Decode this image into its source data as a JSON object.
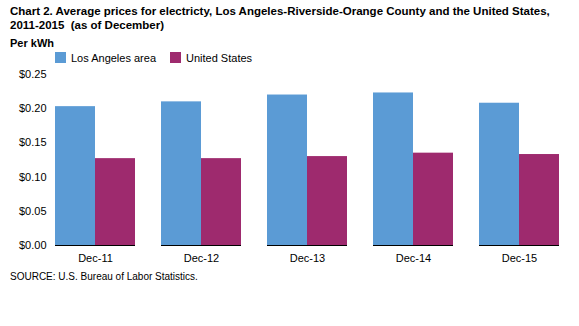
{
  "chart_data": {
    "type": "bar",
    "title": "Chart 2. Average prices for electricty, Los Angeles-Riverside-Orange County and the United States, 2011-2015  (as of December)",
    "ylabel": "Per kWh",
    "source": "SOURCE: U.S. Bureau of Labor Statistics.",
    "categories": [
      "Dec-11",
      "Dec-12",
      "Dec-13",
      "Dec-14",
      "Dec-15"
    ],
    "series": [
      {
        "name": "Los Angeles area",
        "color": "#5B9BD5",
        "values": [
          0.203,
          0.21,
          0.22,
          0.223,
          0.208
        ]
      },
      {
        "name": "United States",
        "color": "#9E2A6E",
        "values": [
          0.127,
          0.127,
          0.13,
          0.135,
          0.133
        ]
      }
    ],
    "ylim": [
      0,
      0.25
    ],
    "yticks": [
      {
        "value": 0.0,
        "label": "$0.00"
      },
      {
        "value": 0.05,
        "label": "$0.05"
      },
      {
        "value": 0.1,
        "label": "$0.10"
      },
      {
        "value": 0.15,
        "label": "$0.15"
      },
      {
        "value": 0.2,
        "label": "$0.20"
      },
      {
        "value": 0.25,
        "label": "$0.25"
      }
    ],
    "grid": false,
    "legend": "upper left"
  }
}
